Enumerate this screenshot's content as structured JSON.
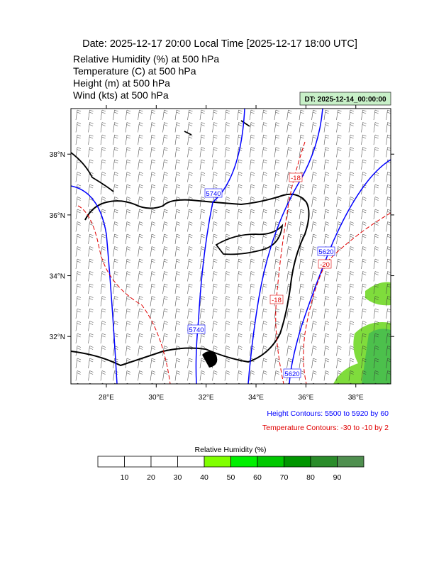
{
  "header": {
    "title": "Date: 2025-12-17  20:00 Local Time [2025-12-17  18:00 UTC]",
    "lines": [
      "Relative Humidity   (%)     at    500 hPa",
      "Temperature   (C)     at   500 hPa",
      "Height   (m)     at   500 hPa",
      "Wind   (kts)     at   500 hPa"
    ]
  },
  "dt_label": "DT: 2025-12-14_00:00:00",
  "map": {
    "xlim": [
      26.58,
      39.4
    ],
    "ylim": [
      30.44,
      39.5
    ],
    "xticks": [
      {
        "value": 28,
        "label": "28°E"
      },
      {
        "value": 30,
        "label": "30°E"
      },
      {
        "value": 32,
        "label": "32°E"
      },
      {
        "value": 34,
        "label": "34°E"
      },
      {
        "value": 36,
        "label": "36°E"
      },
      {
        "value": 38,
        "label": "38°E"
      }
    ],
    "yticks": [
      {
        "value": 32,
        "label": "32°N"
      },
      {
        "value": 34,
        "label": "34°N"
      },
      {
        "value": 36,
        "label": "36°N"
      },
      {
        "value": 38,
        "label": "38°N"
      }
    ],
    "contour_labels": [
      "5740",
      "5740",
      "5620",
      "5620",
      "-18",
      "-18",
      "-20"
    ]
  },
  "notes": [
    "Height Contours: 5500 to 5920 by 60",
    "Temperature Contours: -30 to -10 by 2"
  ],
  "colorbar": {
    "title": "Relative Humidity  (%)",
    "colors": [
      "#ffffff",
      "#ffffff",
      "#ffffff",
      "#ffffff",
      "#80ff00",
      "#00f000",
      "#00c800",
      "#009600",
      "#2a8c2a",
      "#4f8f4f"
    ],
    "ticks": [
      10,
      20,
      30,
      40,
      50,
      60,
      70,
      80,
      90
    ]
  }
}
